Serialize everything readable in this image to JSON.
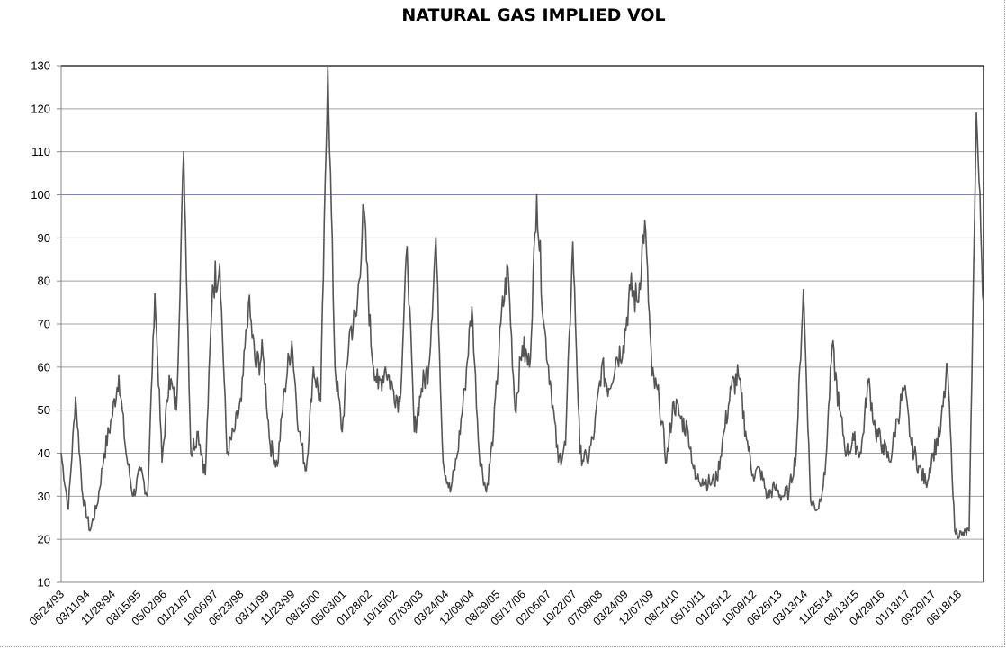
{
  "chart_data": {
    "type": "line",
    "title": "NATURAL GAS IMPLIED VOL",
    "xlabel": "",
    "ylabel": "",
    "ylim": [
      10,
      130
    ],
    "yticks": [
      10,
      20,
      30,
      40,
      50,
      60,
      70,
      80,
      90,
      100,
      110,
      120,
      130
    ],
    "xlim_years": [
      1993.5,
      2019.1
    ],
    "x_tick_labels": [
      "06/24/93",
      "03/11/94",
      "11/28/94",
      "08/15/95",
      "05/02/96",
      "01/21/97",
      "10/06/97",
      "06/23/98",
      "03/11/99",
      "11/23/99",
      "08/15/00",
      "05/03/01",
      "01/28/02",
      "10/15/02",
      "07/03/03",
      "03/24/04",
      "12/09/04",
      "08/29/05",
      "05/17/06",
      "02/06/07",
      "10/22/07",
      "07/08/08",
      "03/24/09",
      "12/07/09",
      "08/24/10",
      "05/10/11",
      "01/25/12",
      "10/09/12",
      "06/26/13",
      "03/13/14",
      "11/25/14",
      "08/13/15",
      "04/29/16",
      "01/13/17",
      "09/29/17",
      "06/18/18"
    ],
    "grid": true,
    "legend": "none",
    "colors": {
      "line": "#555555",
      "grid": "#a0a0a0",
      "grid_100": "#8080c0"
    },
    "series": [
      {
        "name": "Natural Gas Implied Vol",
        "x_start_year": 1993.5,
        "x_step_year": 0.2,
        "values": [
          40,
          27,
          53,
          30,
          22,
          28,
          40,
          48,
          58,
          40,
          30,
          36,
          30,
          77,
          38,
          58,
          50,
          110,
          40,
          45,
          35,
          79,
          84,
          40,
          45,
          52,
          75,
          60,
          63,
          42,
          37,
          55,
          66,
          45,
          36,
          60,
          52,
          130,
          60,
          45,
          68,
          72,
          97,
          65,
          55,
          60,
          55,
          52,
          88,
          45,
          55,
          60,
          90,
          38,
          31,
          40,
          55,
          74,
          40,
          31,
          45,
          70,
          83,
          50,
          65,
          60,
          100,
          70,
          55,
          38,
          42,
          89,
          40,
          38,
          45,
          60,
          55,
          62,
          65,
          78,
          75,
          94,
          58,
          52,
          38,
          52,
          48,
          45,
          34,
          34,
          33,
          34,
          45,
          55,
          58,
          45,
          35,
          36,
          30,
          32,
          30,
          31,
          40,
          78,
          29,
          27,
          35,
          65,
          50,
          40,
          43,
          40,
          57,
          45,
          42,
          38,
          48,
          55,
          42,
          37,
          33,
          40,
          45,
          60,
          22,
          21,
          22,
          119,
          75
        ]
      }
    ]
  }
}
